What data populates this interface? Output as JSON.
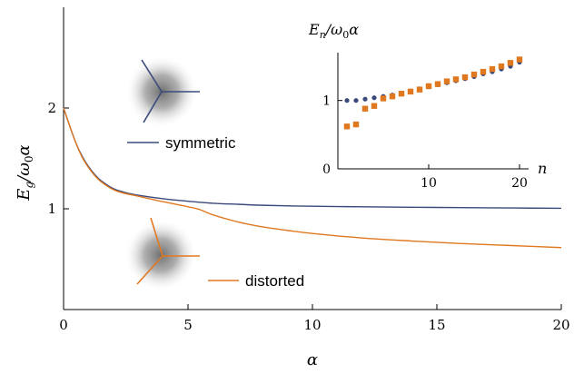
{
  "chart_data": [
    {
      "type": "line",
      "xlabel": "α",
      "ylabel": "E_g/ω₀α",
      "xlim": [
        0,
        20
      ],
      "ylim": [
        0,
        3
      ],
      "x_ticks": [
        "0",
        "5",
        "10",
        "15",
        "20"
      ],
      "y_ticks": [
        "1",
        "2"
      ],
      "series": [
        {
          "name": "symmetric",
          "color": "#3a4a7a",
          "x": [
            0,
            0.25,
            0.5,
            0.75,
            1.0,
            1.25,
            1.5,
            2.0,
            2.5,
            3.0,
            4.0,
            5.0,
            6.0,
            7.0,
            8.0,
            10.0,
            12.0,
            14.0,
            16.0,
            18.0,
            20.0
          ],
          "y": [
            2.0,
            1.82,
            1.65,
            1.52,
            1.42,
            1.34,
            1.28,
            1.2,
            1.16,
            1.135,
            1.1,
            1.075,
            1.055,
            1.045,
            1.035,
            1.025,
            1.02,
            1.015,
            1.012,
            1.008,
            1.005
          ]
        },
        {
          "name": "distorted",
          "color": "#e07820",
          "x": [
            0,
            0.25,
            0.5,
            0.75,
            1.0,
            1.25,
            1.5,
            2.0,
            2.5,
            3.0,
            4.0,
            5.0,
            5.5,
            6.0,
            7.0,
            8.0,
            9.0,
            10.0,
            12.0,
            14.0,
            16.0,
            18.0,
            20.0
          ],
          "y": [
            2.0,
            1.82,
            1.65,
            1.51,
            1.41,
            1.33,
            1.27,
            1.19,
            1.15,
            1.125,
            1.07,
            1.02,
            0.99,
            0.94,
            0.87,
            0.82,
            0.785,
            0.755,
            0.71,
            0.68,
            0.655,
            0.635,
            0.615
          ]
        }
      ]
    },
    {
      "type": "scatter",
      "title": "E_n/ω₀α",
      "xlabel": "n",
      "xlim": [
        0,
        21
      ],
      "ylim": [
        0,
        1.7
      ],
      "x_ticks": [
        "10",
        "20"
      ],
      "y_ticks": [
        "0",
        "1"
      ],
      "series": [
        {
          "name": "symmetric",
          "color": "#3a4a7a",
          "marker": "circle",
          "x": [
            1,
            2,
            3,
            4,
            5,
            6,
            7,
            8,
            9,
            10,
            11,
            12,
            13,
            14,
            15,
            16,
            17,
            18,
            19,
            20
          ],
          "y": [
            1.0,
            1.0,
            1.02,
            1.04,
            1.06,
            1.08,
            1.11,
            1.14,
            1.17,
            1.2,
            1.23,
            1.26,
            1.29,
            1.32,
            1.35,
            1.39,
            1.42,
            1.46,
            1.5,
            1.56
          ]
        },
        {
          "name": "distorted",
          "color": "#e07820",
          "marker": "square",
          "x": [
            1,
            2,
            3,
            4,
            5,
            6,
            7,
            8,
            9,
            10,
            11,
            12,
            13,
            14,
            15,
            16,
            17,
            18,
            19,
            20
          ],
          "y": [
            0.62,
            0.65,
            0.88,
            0.92,
            1.03,
            1.06,
            1.1,
            1.13,
            1.16,
            1.21,
            1.24,
            1.28,
            1.31,
            1.34,
            1.38,
            1.42,
            1.46,
            1.5,
            1.55,
            1.6
          ]
        }
      ]
    }
  ],
  "legend": {
    "symmetric_label": "symmetric",
    "distorted_label": "distorted"
  },
  "labels": {
    "main_xlabel": "α",
    "main_ylabel_E": "E",
    "main_ylabel_sub": "g",
    "main_ylabel_rest": "/ω",
    "main_ylabel_sub2": "0",
    "main_ylabel_alpha": "α",
    "inset_xlabel": "n",
    "inset_title_E": "E",
    "inset_title_sub": "n",
    "inset_title_rest": "/ω",
    "inset_title_sub2": "0",
    "inset_title_alpha": "α"
  },
  "colors": {
    "symmetric": "#3a4a7a",
    "distorted": "#e07820"
  }
}
